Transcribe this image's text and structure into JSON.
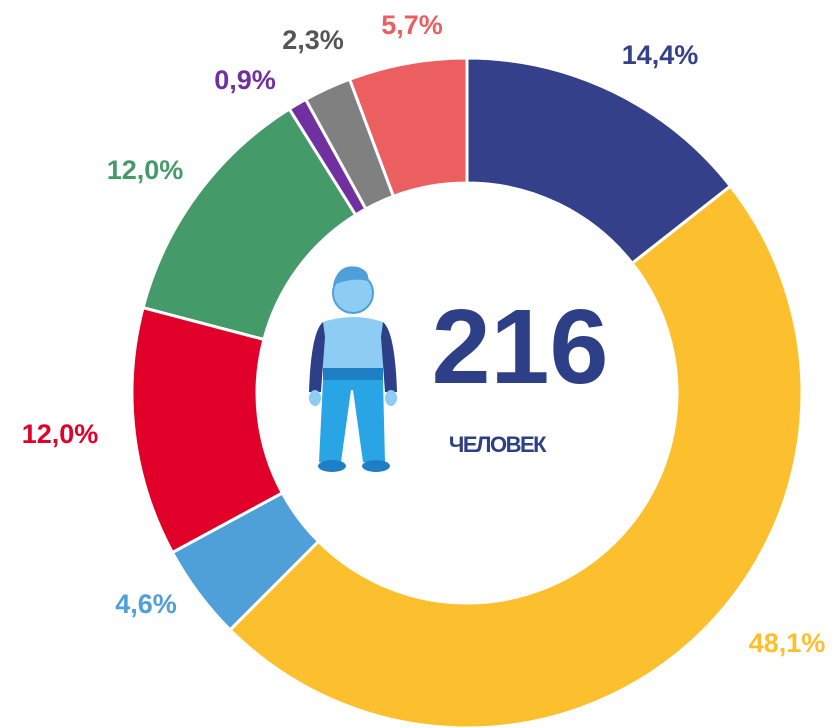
{
  "chart_data": {
    "type": "donut",
    "values": [
      14.4,
      48.1,
      4.6,
      12.0,
      12.0,
      0.9,
      2.3,
      5.7
    ],
    "value_labels": [
      "14,4%",
      "48,1%",
      "4,6%",
      "12,0%",
      "12,0%",
      "0,9%",
      "2,3%",
      "5,7%"
    ],
    "colors": [
      "#34418a",
      "#fcc02e",
      "#4fa0d8",
      "#e0002a",
      "#459a6a",
      "#7030a0",
      "#808080",
      "#ec5f60"
    ],
    "center_value": 216,
    "center_label": "ЧЕЛОВЕК"
  }
}
